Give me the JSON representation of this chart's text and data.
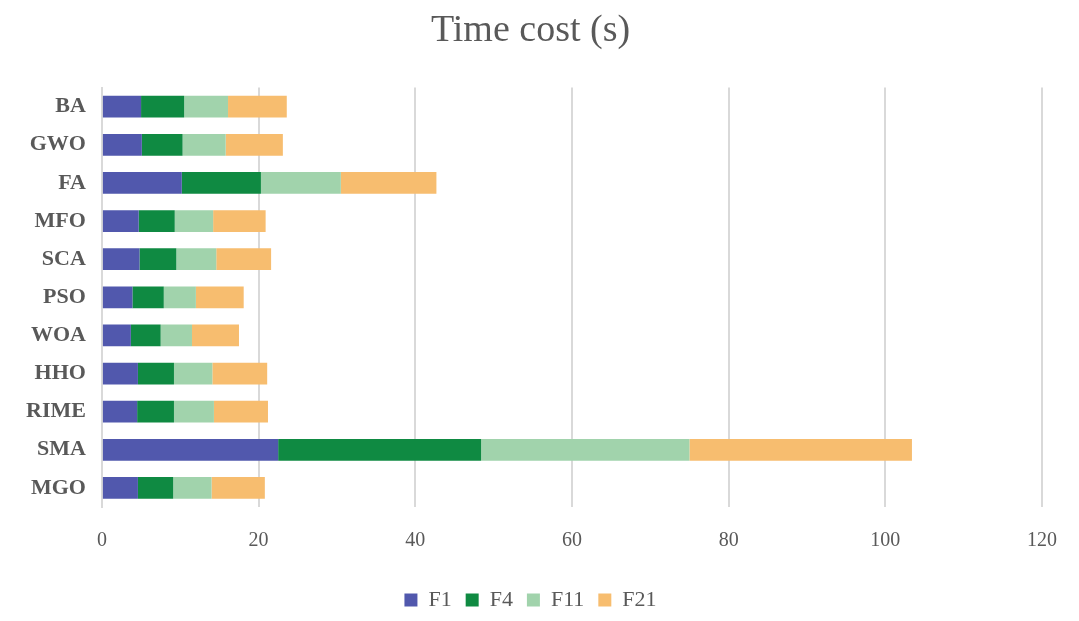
{
  "chart_data": {
    "type": "bar",
    "title": "Time cost (s)",
    "orientation": "horizontal",
    "stacked": true,
    "categories": [
      "BA",
      "GWO",
      "FA",
      "MFO",
      "SCA",
      "PSO",
      "WOA",
      "HHO",
      "RIME",
      "SMA",
      "MGO"
    ],
    "series": [
      {
        "name": "F1",
        "color": "#5158ad",
        "values": [
          5.0,
          5.1,
          10.2,
          4.7,
          4.8,
          3.9,
          3.7,
          4.6,
          4.5,
          22.5,
          4.6
        ]
      },
      {
        "name": "F4",
        "color": "#0f8a42",
        "values": [
          5.5,
          5.2,
          10.1,
          4.6,
          4.7,
          4.0,
          3.8,
          4.6,
          4.7,
          25.9,
          4.5
        ]
      },
      {
        "name": "F11",
        "color": "#a1d3ac",
        "values": [
          5.6,
          5.5,
          10.2,
          4.9,
          5.1,
          4.1,
          4.0,
          4.9,
          5.1,
          26.6,
          4.9
        ]
      },
      {
        "name": "F21",
        "color": "#f7bd6f",
        "values": [
          7.5,
          7.3,
          12.2,
          6.7,
          7.0,
          6.1,
          6.0,
          7.0,
          6.9,
          28.4,
          6.8
        ]
      }
    ],
    "xlim": [
      0,
      120
    ],
    "xticks": [
      0,
      20,
      40,
      60,
      80,
      100,
      120
    ],
    "grid": "x",
    "legend": "bottom"
  }
}
